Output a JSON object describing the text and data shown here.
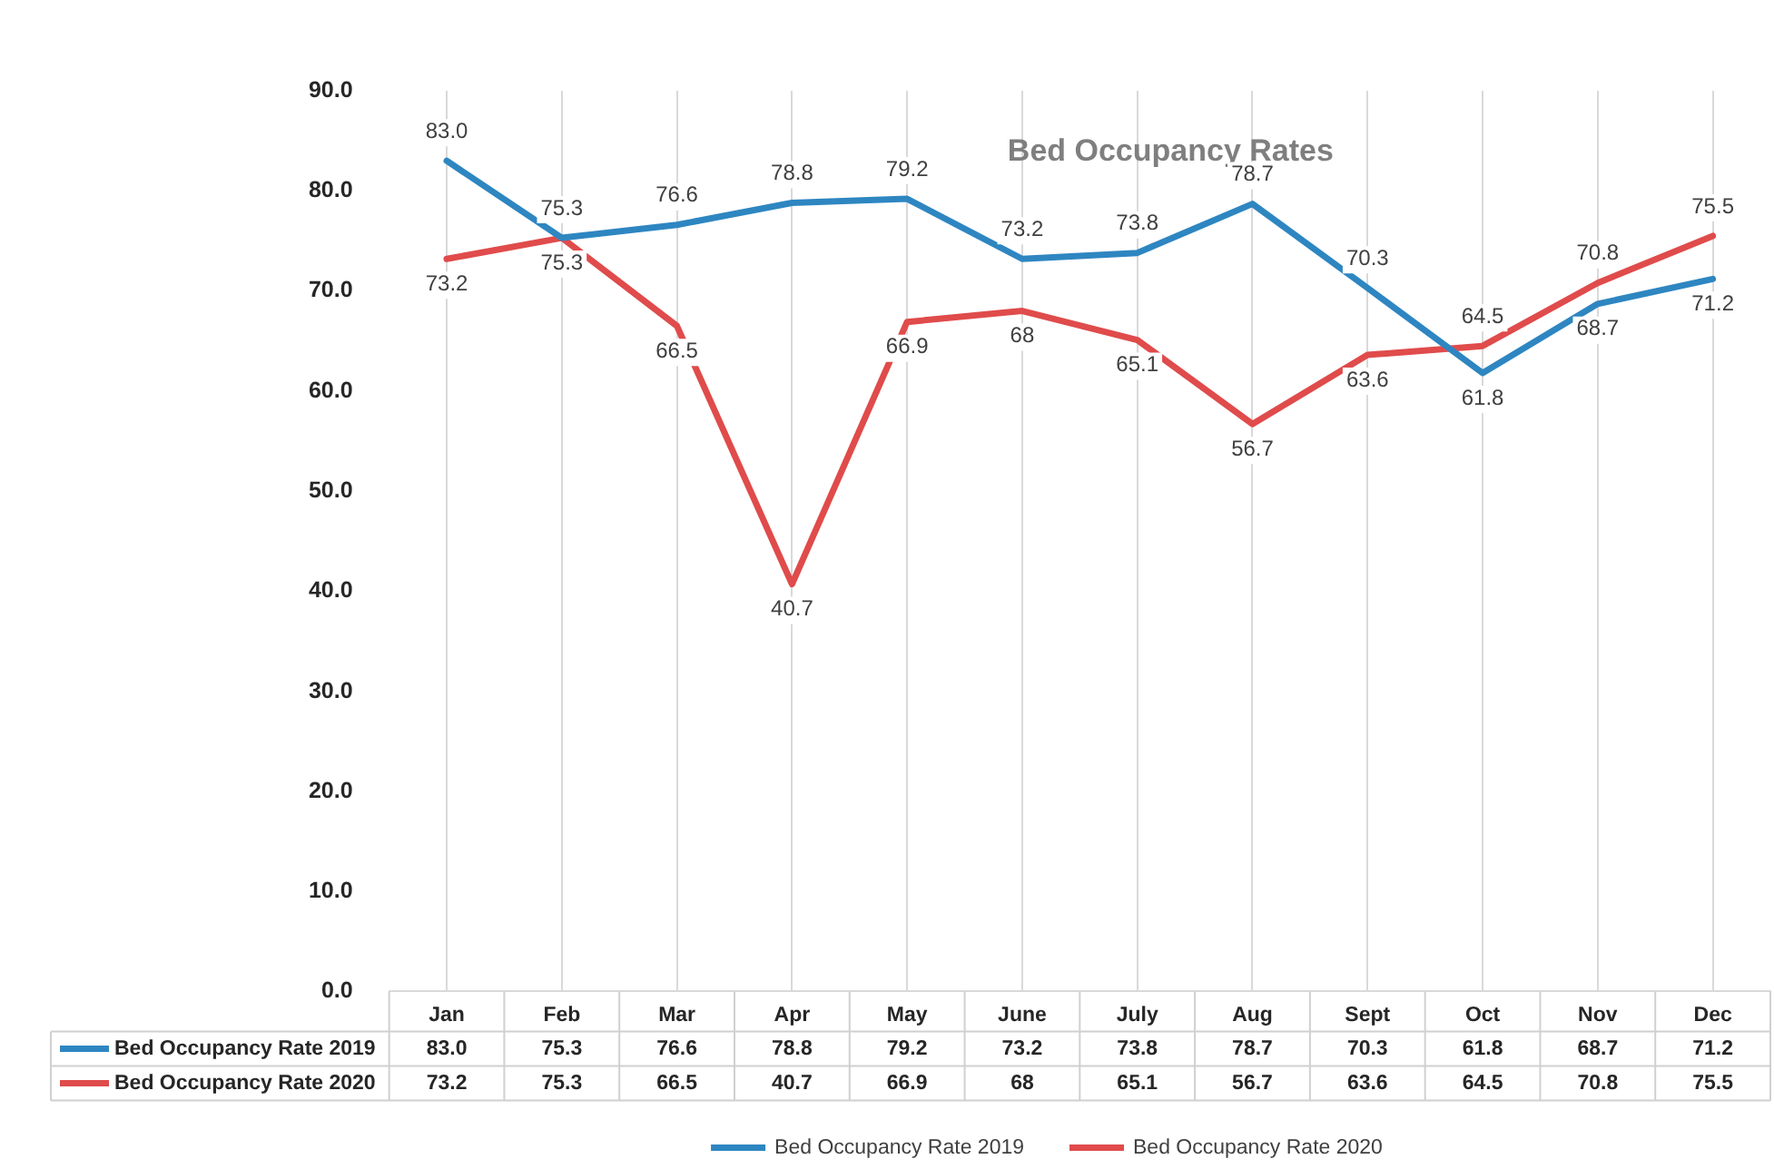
{
  "chart_data": {
    "type": "line",
    "title": "Bed Occupancy Rates",
    "categories": [
      "Jan",
      "Feb",
      "Mar",
      "Apr",
      "May",
      "June",
      "July",
      "Aug",
      "Sept",
      "Oct",
      "Nov",
      "Dec"
    ],
    "series": [
      {
        "name": "Bed Occupancy Rate 2019",
        "color": "#2e86c1",
        "values": [
          83.0,
          75.3,
          76.6,
          78.8,
          79.2,
          73.2,
          73.8,
          78.7,
          70.3,
          61.8,
          68.7,
          71.2
        ],
        "value_labels": [
          "83.0",
          "75.3",
          "76.6",
          "78.8",
          "79.2",
          "73.2",
          "73.8",
          "78.7",
          "70.3",
          "61.8",
          "68.7",
          "71.2"
        ]
      },
      {
        "name": "Bed Occupancy Rate 2020",
        "color": "#e04b4b",
        "values": [
          73.2,
          75.3,
          66.5,
          40.7,
          66.9,
          68,
          65.1,
          56.7,
          63.6,
          64.5,
          70.8,
          75.5
        ],
        "value_labels": [
          "73.2",
          "75.3",
          "66.5",
          "40.7",
          "66.9",
          "68",
          "65.1",
          "56.7",
          "63.6",
          "64.5",
          "70.8",
          "75.5"
        ]
      }
    ],
    "ylim": [
      0,
      90
    ],
    "yticks": [
      {
        "value": 0,
        "label": "0.0"
      },
      {
        "value": 10,
        "label": "10.0"
      },
      {
        "value": 20,
        "label": "20.0"
      },
      {
        "value": 30,
        "label": "30.0"
      },
      {
        "value": 40,
        "label": "40.0"
      },
      {
        "value": 50,
        "label": "50.0"
      },
      {
        "value": 60,
        "label": "60.0"
      },
      {
        "value": 70,
        "label": "70.0"
      },
      {
        "value": 80,
        "label": "80.0"
      },
      {
        "value": 90,
        "label": "90.0"
      }
    ],
    "grid": "x",
    "legend": "bottom",
    "marker": "none",
    "line_style": "solid"
  }
}
